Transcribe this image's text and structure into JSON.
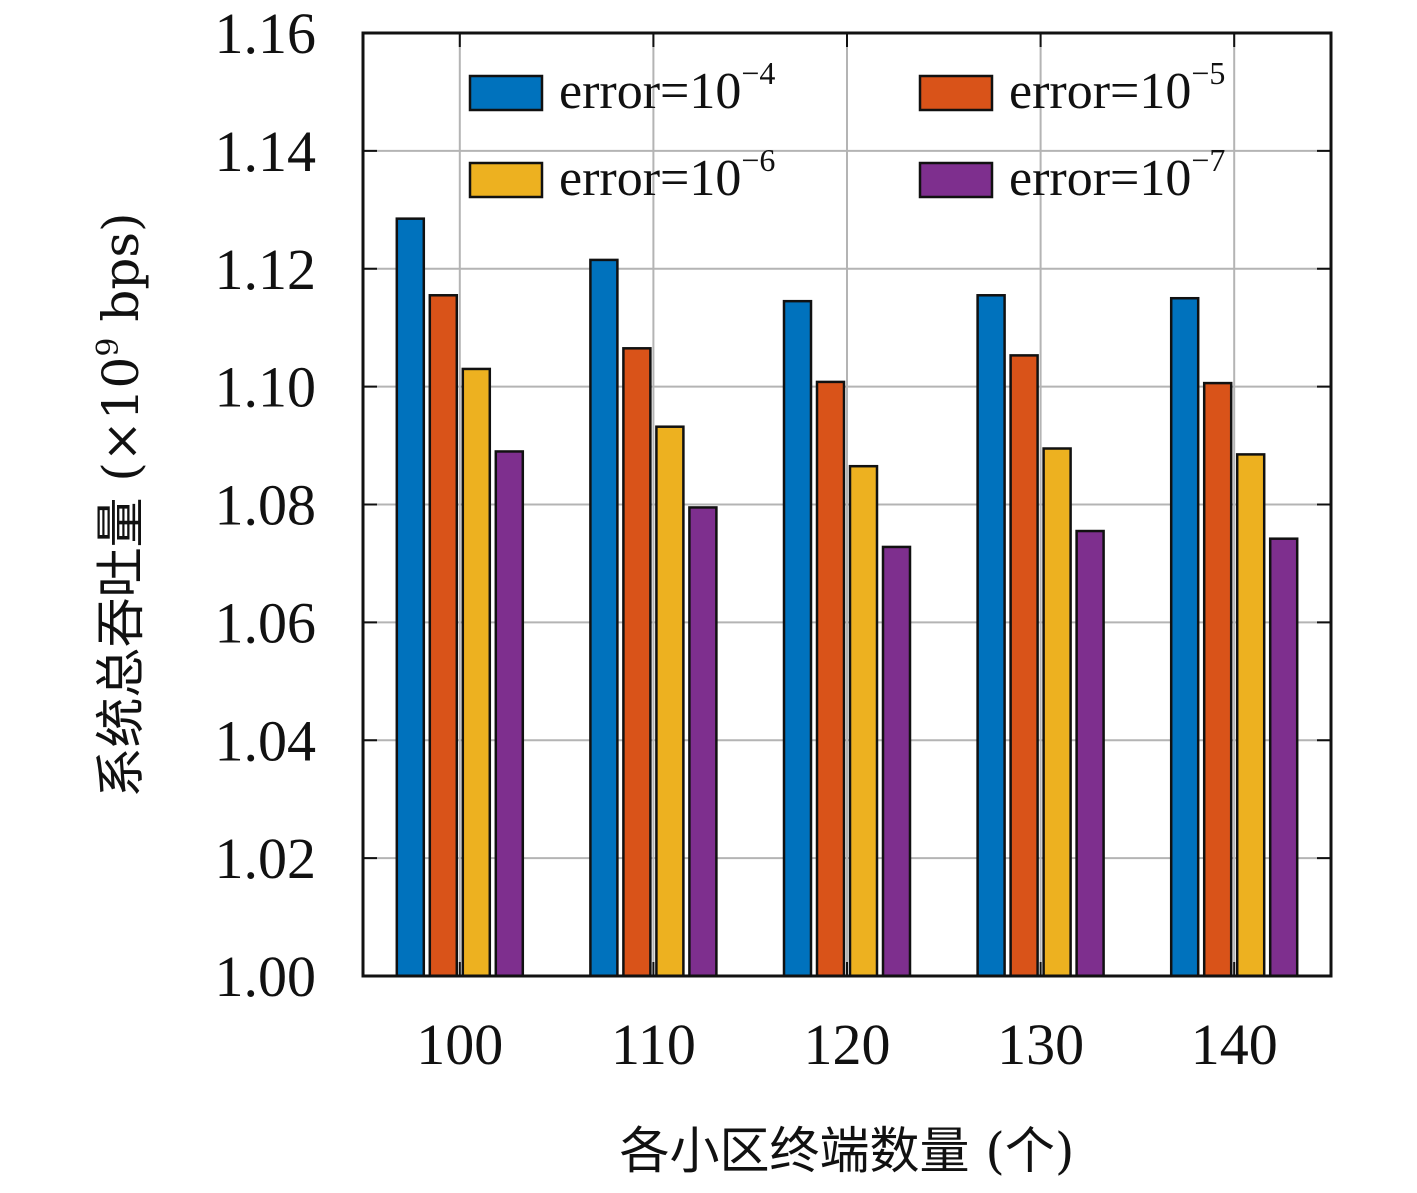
{
  "chart_data": {
    "type": "bar",
    "title": "",
    "xlabel": "各小区终端数量 (个)",
    "ylabel_main": "系统总吞吐量 (×10",
    "ylabel_exp": "9",
    "ylabel_tail": " bps)",
    "categories": [
      "100",
      "110",
      "120",
      "130",
      "140"
    ],
    "ylim": [
      1.0,
      1.16
    ],
    "yticks": [
      "1.00",
      "1.02",
      "1.04",
      "1.06",
      "1.08",
      "1.10",
      "1.12",
      "1.14",
      "1.16"
    ],
    "grid": true,
    "legend_position": "top",
    "series": [
      {
        "name": "error=10",
        "exponent": "−4",
        "color": "#0072BD",
        "values": [
          1.1285,
          1.1215,
          1.1145,
          1.1155,
          1.115
        ]
      },
      {
        "name": "error=10",
        "exponent": "−5",
        "color": "#D95319",
        "values": [
          1.1155,
          1.1065,
          1.1008,
          1.1053,
          1.1006
        ]
      },
      {
        "name": "error=10",
        "exponent": "−6",
        "color": "#EDB120",
        "values": [
          1.103,
          1.0932,
          1.0865,
          1.0895,
          1.0885
        ]
      },
      {
        "name": "error=10",
        "exponent": "−7",
        "color": "#7E2F8E",
        "values": [
          1.089,
          1.0795,
          1.0728,
          1.0755,
          1.0742
        ]
      }
    ]
  }
}
